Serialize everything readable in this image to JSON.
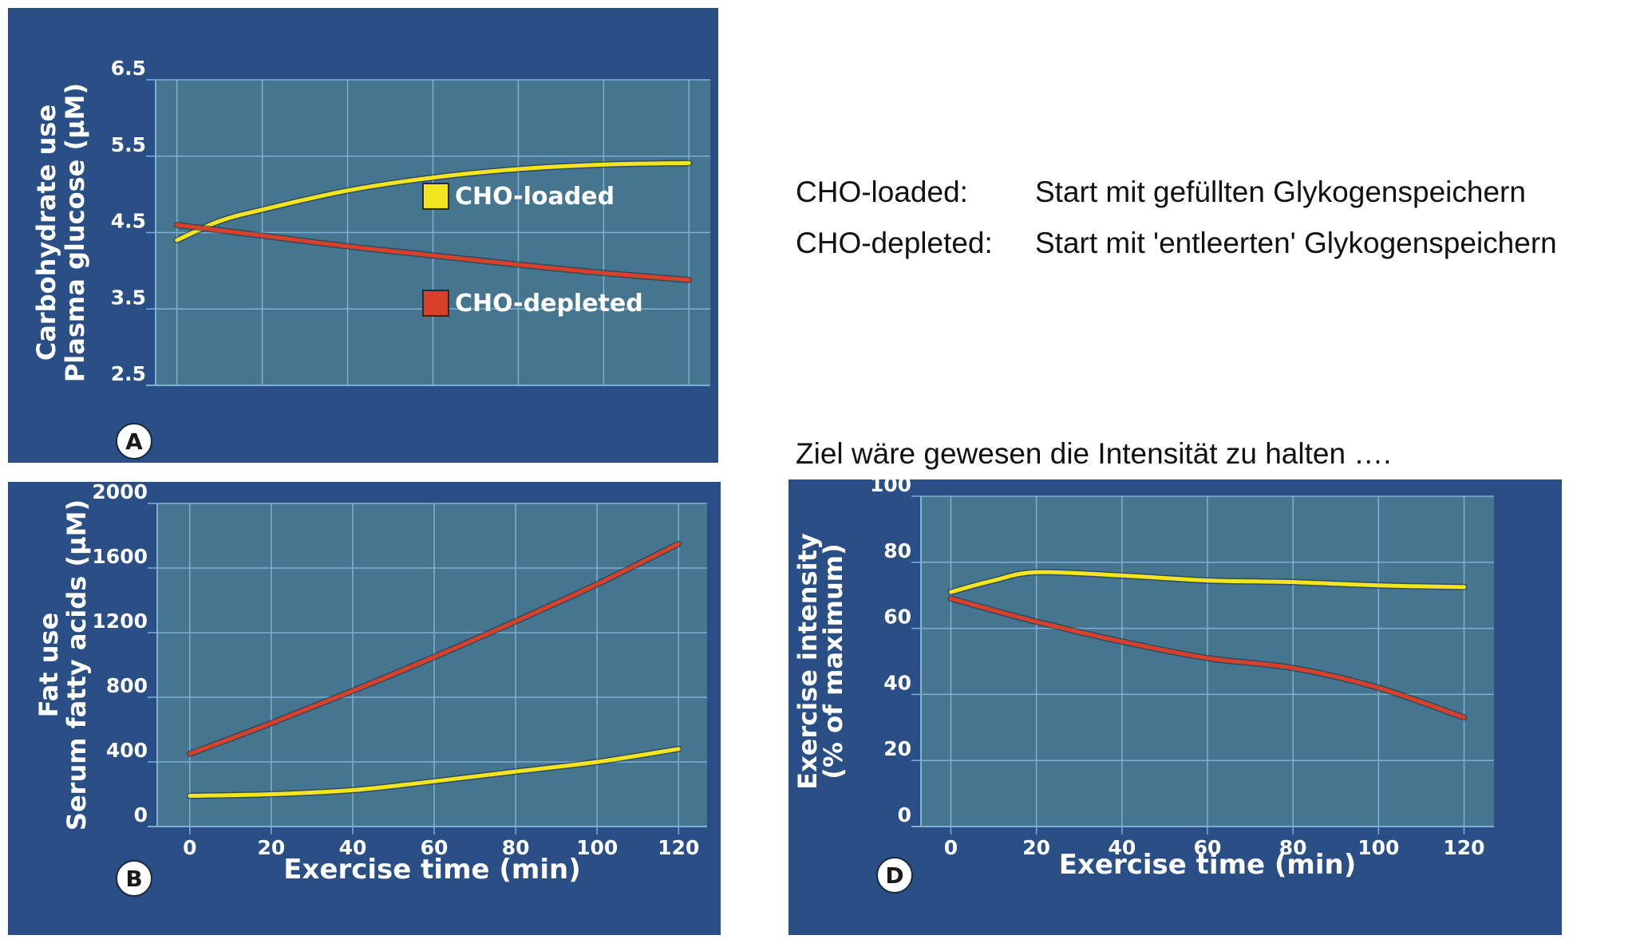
{
  "notes": {
    "loaded_key": "CHO-loaded:",
    "loaded_text": "Start mit gefüllten Glykogenspeichern",
    "depleted_key": "CHO-depleted:",
    "depleted_text": "Start mit 'entleerten' Glykogenspeichern",
    "goal_text": "Ziel wäre gewesen die Intensität zu halten …."
  },
  "colors": {
    "panel_bg": "#2a4e86",
    "plot_bg": "#46758f",
    "grid": "#7fb0d4",
    "loaded_line": "#f3e520",
    "depleted_line": "#d8402a",
    "text": "#ffffff",
    "badge_bg": "#ffffff",
    "badge_text": "#1a1a1a"
  },
  "chart_data": [
    {
      "panel": "A",
      "type": "line",
      "badge": "A",
      "ylabel_line1": "Carbohydrate use",
      "ylabel_line2": "Plasma glucose (µM)",
      "xlabel": "",
      "yticks": [
        "6.5",
        "5.5",
        "4.5",
        "3.5",
        "2.5"
      ],
      "ytick_values": [
        6.5,
        5.5,
        4.5,
        3.5,
        2.5
      ],
      "ylim": [
        2.5,
        6.5
      ],
      "xlim": [
        -5,
        125
      ],
      "x_grid": [
        0,
        20,
        40,
        60,
        80,
        100,
        120
      ],
      "xticks_shown": false,
      "grid": true,
      "legend_position": "inside-center",
      "series": [
        {
          "name": "CHO-loaded",
          "color_key": "loaded_line",
          "x": [
            0,
            10,
            20,
            40,
            60,
            80,
            100,
            120
          ],
          "y": [
            4.4,
            4.65,
            4.8,
            5.05,
            5.22,
            5.33,
            5.39,
            5.41
          ]
        },
        {
          "name": "CHO-depleted",
          "color_key": "depleted_line",
          "x": [
            0,
            20,
            40,
            60,
            80,
            100,
            120
          ],
          "y": [
            4.6,
            4.46,
            4.32,
            4.2,
            4.08,
            3.97,
            3.88
          ]
        }
      ]
    },
    {
      "panel": "B",
      "type": "line",
      "badge": "B",
      "ylabel_line1": "Fat use",
      "ylabel_line2": "Serum fatty acids (µM)",
      "xlabel": "Exercise time (min)",
      "yticks": [
        "2000",
        "1600",
        "1200",
        "800",
        "400",
        "0"
      ],
      "ytick_values": [
        2000,
        1600,
        1200,
        800,
        400,
        0
      ],
      "xticks": [
        "0",
        "20",
        "40",
        "60",
        "80",
        "100",
        "120"
      ],
      "xtick_values": [
        0,
        20,
        40,
        60,
        80,
        100,
        120
      ],
      "ylim": [
        0,
        2000
      ],
      "xlim": [
        -8,
        127
      ],
      "grid": true,
      "series": [
        {
          "name": "",
          "color_key": "depleted_line",
          "x": [
            0,
            20,
            40,
            60,
            80,
            100,
            120
          ],
          "y": [
            450,
            640,
            840,
            1050,
            1270,
            1500,
            1750
          ]
        },
        {
          "name": "",
          "color_key": "loaded_line",
          "x": [
            0,
            20,
            40,
            60,
            80,
            100,
            120
          ],
          "y": [
            190,
            200,
            225,
            280,
            340,
            400,
            480
          ]
        }
      ]
    },
    {
      "panel": "D",
      "type": "line",
      "badge": "D",
      "ylabel_line1": "Exercise intensity",
      "ylabel_line2": "(% of maximum)",
      "xlabel": "Exercise time (min)",
      "yticks": [
        "100",
        "80",
        "60",
        "40",
        "20",
        "0"
      ],
      "ytick_values": [
        100,
        80,
        60,
        40,
        20,
        0
      ],
      "xticks": [
        "0",
        "20",
        "40",
        "60",
        "80",
        "100",
        "120"
      ],
      "xtick_values": [
        0,
        20,
        40,
        60,
        80,
        100,
        120
      ],
      "ylim": [
        0,
        100
      ],
      "xlim": [
        -7,
        127
      ],
      "grid": true,
      "series": [
        {
          "name": "",
          "color_key": "loaded_line",
          "x": [
            0,
            10,
            20,
            40,
            60,
            80,
            100,
            120
          ],
          "y": [
            71,
            74.5,
            77,
            76,
            74.5,
            74,
            73,
            72.5
          ]
        },
        {
          "name": "",
          "color_key": "depleted_line",
          "x": [
            0,
            20,
            40,
            60,
            80,
            100,
            120
          ],
          "y": [
            69,
            62,
            56,
            51,
            48,
            42,
            33
          ]
        }
      ]
    }
  ]
}
